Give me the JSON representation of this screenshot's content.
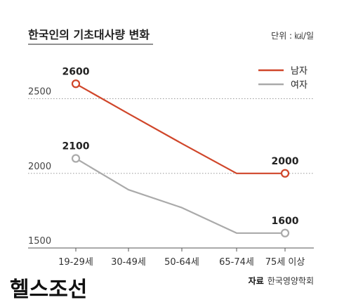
{
  "header": {
    "title": "한국인의 기초대사량 변화",
    "unit": "단위 : ㎉/일"
  },
  "chart_data": {
    "type": "line",
    "title": "한국인의 기초대사량 변화",
    "unit": "단위 : ㎉/일",
    "categories": [
      "19-29세",
      "30-49세",
      "50-64세",
      "65-74세",
      "75세 이상"
    ],
    "series": [
      {
        "name": "남자",
        "color": "#d0462a",
        "values": [
          2600,
          2400,
          2200,
          2000,
          2000
        ],
        "labels": [
          "2600",
          "",
          "",
          "",
          "2000"
        ]
      },
      {
        "name": "여자",
        "color": "#aaaaaa",
        "values": [
          2100,
          1890,
          1770,
          1600,
          1600
        ],
        "labels": [
          "2100",
          "",
          "",
          "",
          "1600"
        ]
      }
    ],
    "yticks": [
      1500,
      2000,
      2500
    ],
    "ytick_labels": [
      "1500",
      "2000",
      "2500"
    ],
    "ylim": [
      1500,
      2600
    ],
    "grid": "dotted-horizontal",
    "legend": "top-right"
  },
  "footer": {
    "brand": "헬스조선",
    "source_key": "자료",
    "source_value": "한국영양학회"
  }
}
